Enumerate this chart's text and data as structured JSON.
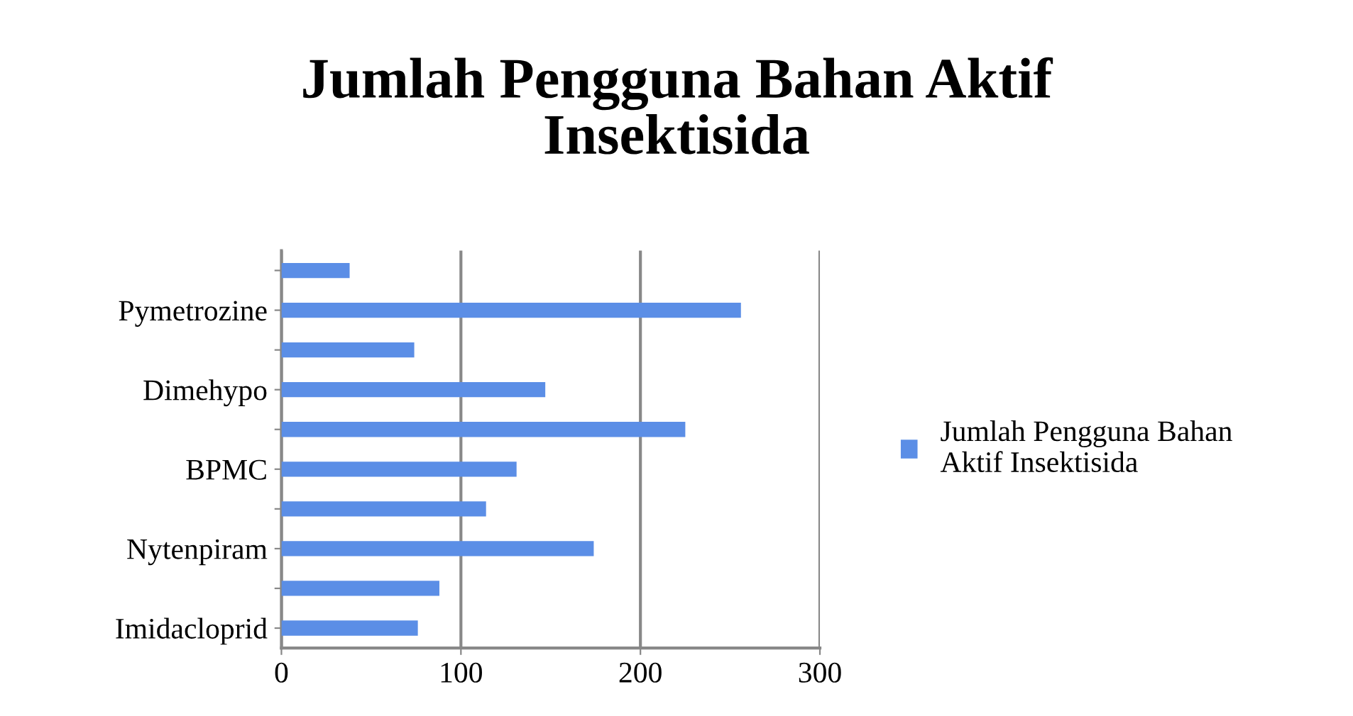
{
  "chart_data": {
    "type": "bar",
    "orientation": "horizontal",
    "title": "Jumlah Pengguna Bahan Aktif\nInsektisida",
    "categories": [
      null,
      "Pymetrozine",
      null,
      "Dimehypo",
      null,
      "BPMC",
      null,
      "Nytenpiram",
      null,
      "Imidacloprid"
    ],
    "series": [
      {
        "name": "Jumlah Pengguna Bahan Aktif Insektisida",
        "color": "#5b8ee6",
        "values": [
          38,
          256,
          74,
          147,
          225,
          131,
          114,
          174,
          88,
          76
        ]
      }
    ],
    "xlim": [
      0,
      300
    ],
    "xticks": [
      0,
      100,
      200,
      300
    ],
    "grid": "x",
    "legend": "right"
  }
}
